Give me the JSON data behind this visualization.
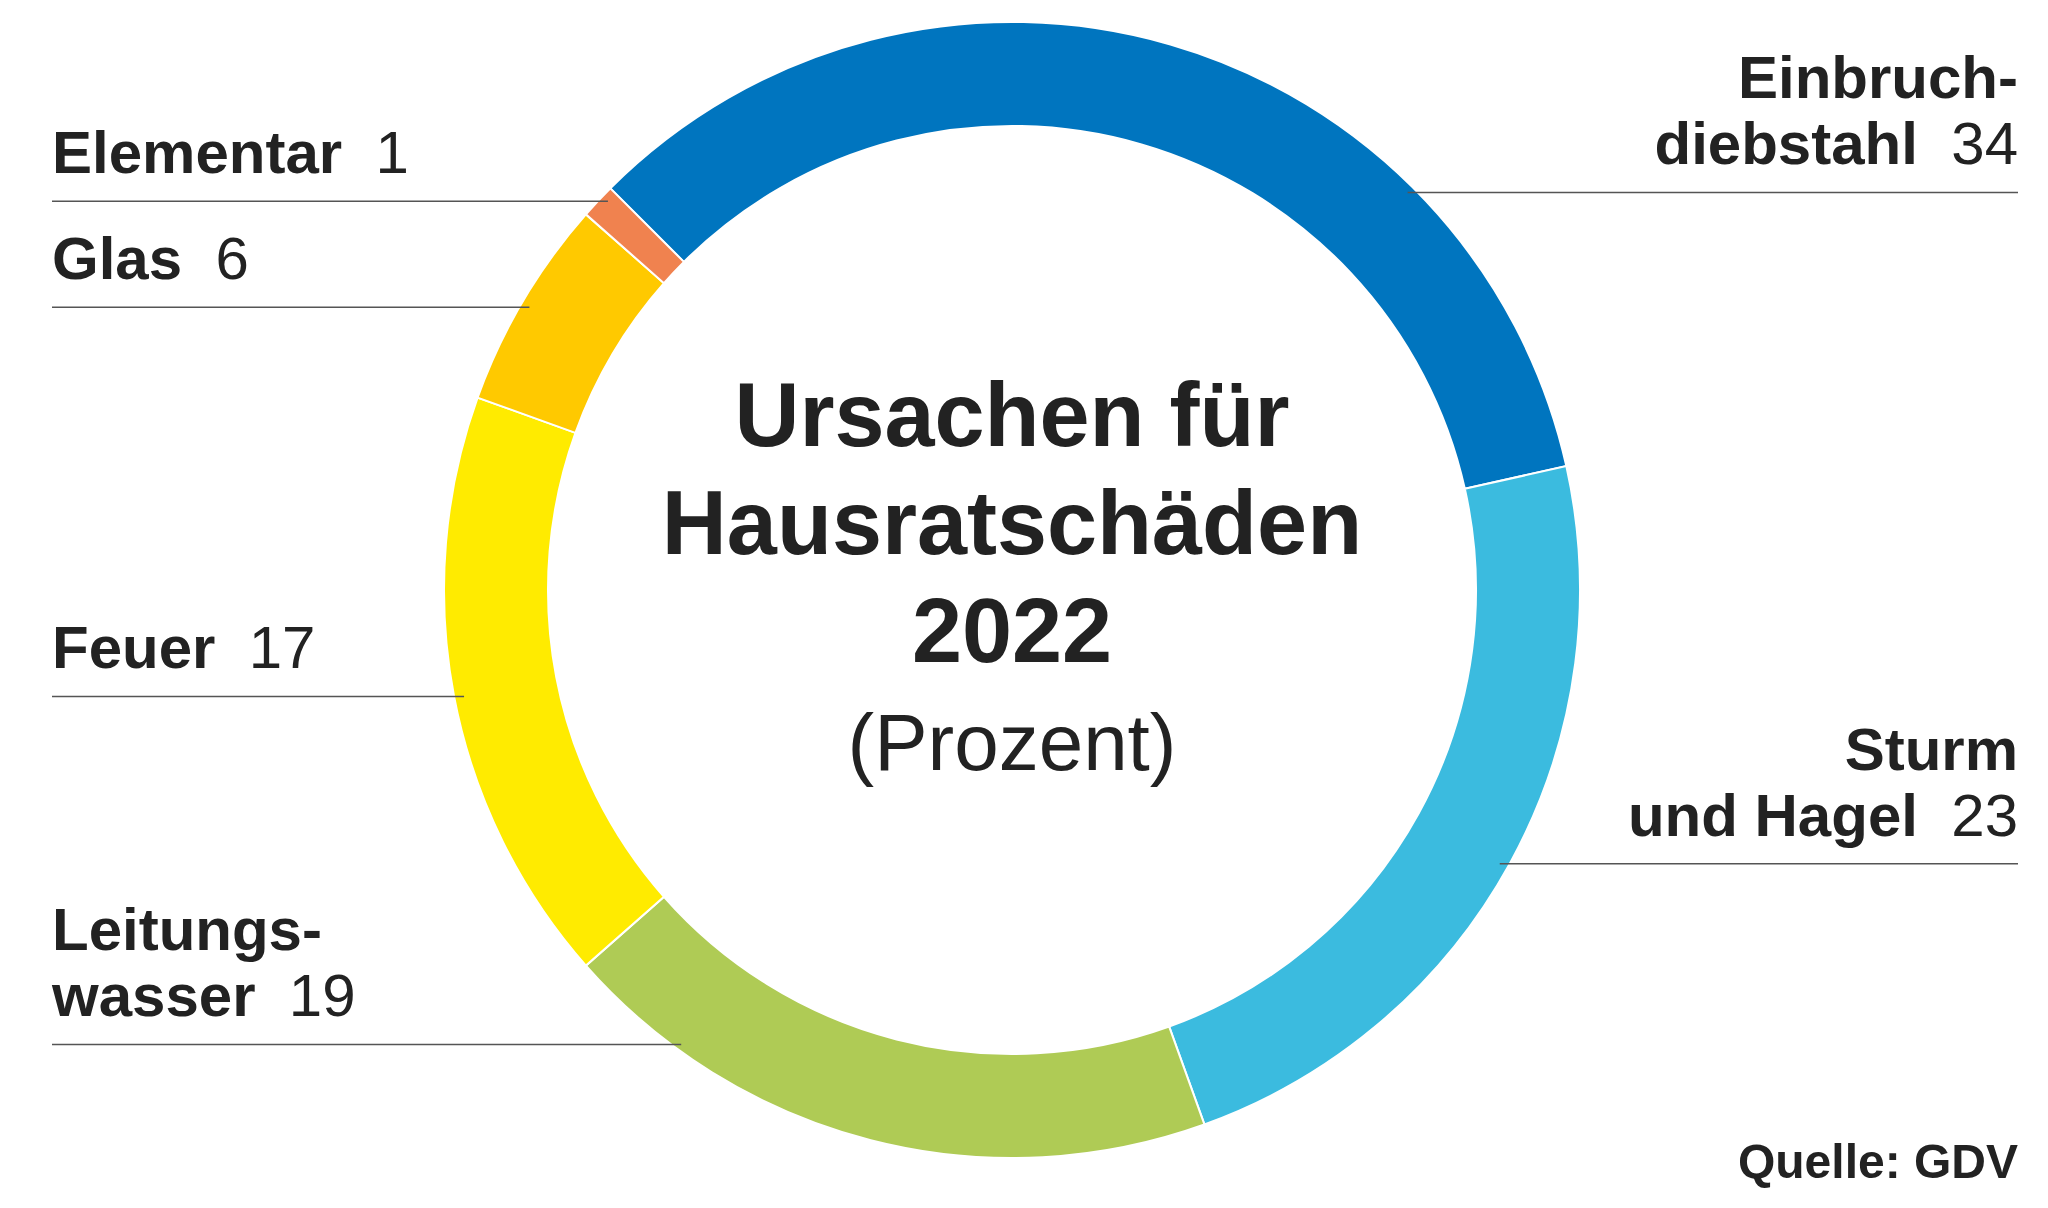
{
  "chart_data": {
    "type": "donut",
    "title": "Ursachen für\nHausratschäden\n2022",
    "subtitle": "(Prozent)",
    "categories": [
      "Einbruch-\ndiebstahl",
      "Sturm\nund Hagel",
      "Leitungs-\nwasser",
      "Feuer",
      "Glas",
      "Elementar"
    ],
    "values": [
      34,
      23,
      19,
      17,
      6,
      1
    ],
    "colors": [
      "#0075bf",
      "#3bbbdf",
      "#afcb55",
      "#ffeb00",
      "#ffc900",
      "#f0824f"
    ],
    "data_labels": true,
    "annotations": [
      "Quelle: GDV"
    ]
  }
}
